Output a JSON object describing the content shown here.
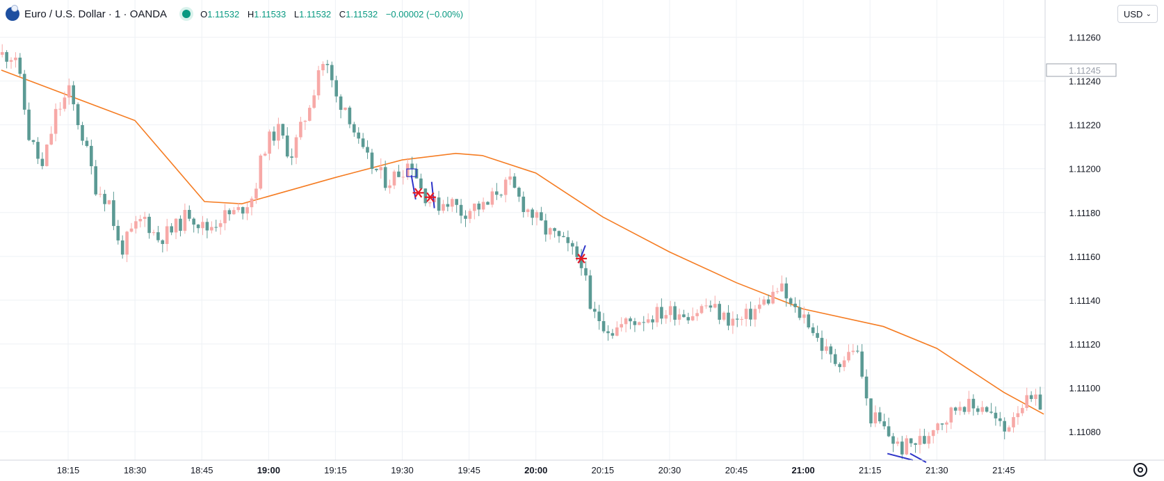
{
  "legend": {
    "symbol": "Euro / U.S. Dollar · 1 · OANDA",
    "o_label": "O",
    "o_value": "1.11532",
    "h_label": "H",
    "h_value": "1.11533",
    "l_label": "L",
    "l_value": "1.11532",
    "c_label": "C",
    "c_value": "1.11532",
    "change": "−0.00002 (−0.00%)"
  },
  "currency_selector": "USD",
  "colors": {
    "up": "#f7a9a7",
    "down": "#5b9a94",
    "ma": "#f57c22",
    "grid": "#eef1f5",
    "marker_red": "#e21b25",
    "marker_blue": "#2d33c8"
  },
  "chart_data": {
    "type": "candlestick",
    "x_ticks": [
      {
        "label": "18:15",
        "t": 18.25,
        "bold": false
      },
      {
        "label": "18:30",
        "t": 18.5,
        "bold": false
      },
      {
        "label": "18:45",
        "t": 18.75,
        "bold": false
      },
      {
        "label": "19:00",
        "t": 19.0,
        "bold": true
      },
      {
        "label": "19:15",
        "t": 19.25,
        "bold": false
      },
      {
        "label": "19:30",
        "t": 19.5,
        "bold": false
      },
      {
        "label": "19:45",
        "t": 19.75,
        "bold": false
      },
      {
        "label": "20:00",
        "t": 20.0,
        "bold": true
      },
      {
        "label": "20:15",
        "t": 20.25,
        "bold": false
      },
      {
        "label": "20:30",
        "t": 20.5,
        "bold": false
      },
      {
        "label": "20:45",
        "t": 20.75,
        "bold": false
      },
      {
        "label": "21:00",
        "t": 21.0,
        "bold": true
      },
      {
        "label": "21:15",
        "t": 21.25,
        "bold": false
      },
      {
        "label": "21:30",
        "t": 21.5,
        "bold": false
      },
      {
        "label": "21:45",
        "t": 21.75,
        "bold": false
      }
    ],
    "y_ticks": [
      "1.11260",
      "1.11240",
      "1.11220",
      "1.11200",
      "1.11180",
      "1.11160",
      "1.11140",
      "1.11120",
      "1.11100",
      "1.11080"
    ],
    "current_price_label": "1.11245",
    "ylim": [
      1.11067,
      1.11277
    ],
    "close_path": [
      [
        18.07,
        1.11252
      ],
      [
        18.12,
        1.11215
      ],
      [
        18.17,
        1.112
      ],
      [
        18.22,
        1.11225
      ],
      [
        18.27,
        1.11235
      ],
      [
        18.32,
        1.11215
      ],
      [
        18.37,
        1.11192
      ],
      [
        18.42,
        1.11185
      ],
      [
        18.46,
        1.11162
      ],
      [
        18.5,
        1.1117
      ],
      [
        18.55,
        1.11178
      ],
      [
        18.6,
        1.11168
      ],
      [
        18.66,
        1.11172
      ],
      [
        18.72,
        1.1118
      ],
      [
        18.78,
        1.11172
      ],
      [
        18.84,
        1.11178
      ],
      [
        18.9,
        1.1118
      ],
      [
        18.96,
        1.11188
      ],
      [
        19.0,
        1.1121
      ],
      [
        19.05,
        1.11218
      ],
      [
        19.1,
        1.11206
      ],
      [
        19.15,
        1.11222
      ],
      [
        19.19,
        1.11238
      ],
      [
        19.21,
        1.1125
      ],
      [
        19.24,
        1.11245
      ],
      [
        19.27,
        1.11232
      ],
      [
        19.31,
        1.11228
      ],
      [
        19.36,
        1.11208
      ],
      [
        19.41,
        1.112
      ],
      [
        19.46,
        1.11194
      ],
      [
        19.51,
        1.11199
      ],
      [
        19.55,
        1.11204
      ],
      [
        19.59,
        1.1119
      ],
      [
        19.64,
        1.11183
      ],
      [
        19.69,
        1.11186
      ],
      [
        19.74,
        1.1118
      ],
      [
        19.79,
        1.11183
      ],
      [
        19.83,
        1.11182
      ],
      [
        19.87,
        1.1119
      ],
      [
        19.92,
        1.11193
      ],
      [
        19.96,
        1.11185
      ],
      [
        20.01,
        1.11178
      ],
      [
        20.05,
        1.11172
      ],
      [
        20.1,
        1.11168
      ],
      [
        20.15,
        1.11162
      ],
      [
        20.19,
        1.11158
      ],
      [
        20.22,
        1.11134
      ],
      [
        20.25,
        1.11132
      ],
      [
        20.3,
        1.11126
      ],
      [
        20.36,
        1.1113
      ],
      [
        20.42,
        1.11132
      ],
      [
        20.48,
        1.11134
      ],
      [
        20.54,
        1.11135
      ],
      [
        20.6,
        1.11134
      ],
      [
        20.66,
        1.11138
      ],
      [
        20.72,
        1.11132
      ],
      [
        20.78,
        1.1113
      ],
      [
        20.84,
        1.11136
      ],
      [
        20.9,
        1.11142
      ],
      [
        20.93,
        1.11146
      ],
      [
        20.98,
        1.11135
      ],
      [
        21.03,
        1.11132
      ],
      [
        21.08,
        1.1112
      ],
      [
        21.13,
        1.11112
      ],
      [
        21.18,
        1.11114
      ],
      [
        21.21,
        1.1112
      ],
      [
        21.24,
        1.11104
      ],
      [
        21.26,
        1.11088
      ],
      [
        21.3,
        1.11084
      ],
      [
        21.34,
        1.11078
      ],
      [
        21.38,
        1.11072
      ],
      [
        21.43,
        1.11075
      ],
      [
        21.47,
        1.11076
      ],
      [
        21.51,
        1.11085
      ],
      [
        21.55,
        1.11086
      ],
      [
        21.58,
        1.1109
      ],
      [
        21.61,
        1.11094
      ],
      [
        21.65,
        1.1109
      ],
      [
        21.69,
        1.11093
      ],
      [
        21.73,
        1.11086
      ],
      [
        21.77,
        1.1108
      ],
      [
        21.8,
        1.11088
      ],
      [
        21.83,
        1.11093
      ]
    ],
    "ma_series": [
      [
        18.0,
        1.11245
      ],
      [
        18.5,
        1.11222
      ],
      [
        18.76,
        1.11185
      ],
      [
        18.9,
        1.11184
      ],
      [
        19.25,
        1.11196
      ],
      [
        19.5,
        1.11204
      ],
      [
        19.7,
        1.11207
      ],
      [
        19.8,
        1.11206
      ],
      [
        20.0,
        1.11198
      ],
      [
        20.1,
        1.1119
      ],
      [
        20.25,
        1.11178
      ],
      [
        20.5,
        1.11162
      ],
      [
        20.75,
        1.11148
      ],
      [
        21.0,
        1.11136
      ],
      [
        21.3,
        1.11128
      ],
      [
        21.5,
        1.11118
      ],
      [
        21.75,
        1.11098
      ],
      [
        21.9,
        1.11088
      ]
    ],
    "markers": [
      {
        "type": "star",
        "t": 19.56,
        "price": 1.11189
      },
      {
        "type": "star",
        "t": 19.605,
        "price": 1.11187
      },
      {
        "type": "star",
        "t": 20.17,
        "price": 1.11159
      },
      {
        "type": "box",
        "t": 19.535,
        "price": 1.11198
      }
    ],
    "blue_lines": [
      [
        [
          19.534,
          1.11197
        ],
        [
          19.55,
          1.11186
        ]
      ],
      [
        [
          19.61,
          1.11194
        ],
        [
          19.62,
          1.11182
        ]
      ],
      [
        [
          20.16,
          1.11157
        ],
        [
          20.185,
          1.11165
        ]
      ],
      [
        [
          21.315,
          1.1107
        ],
        [
          21.41,
          1.11067
        ]
      ],
      [
        [
          21.4,
          1.1107
        ],
        [
          21.46,
          1.11066
        ]
      ]
    ]
  }
}
